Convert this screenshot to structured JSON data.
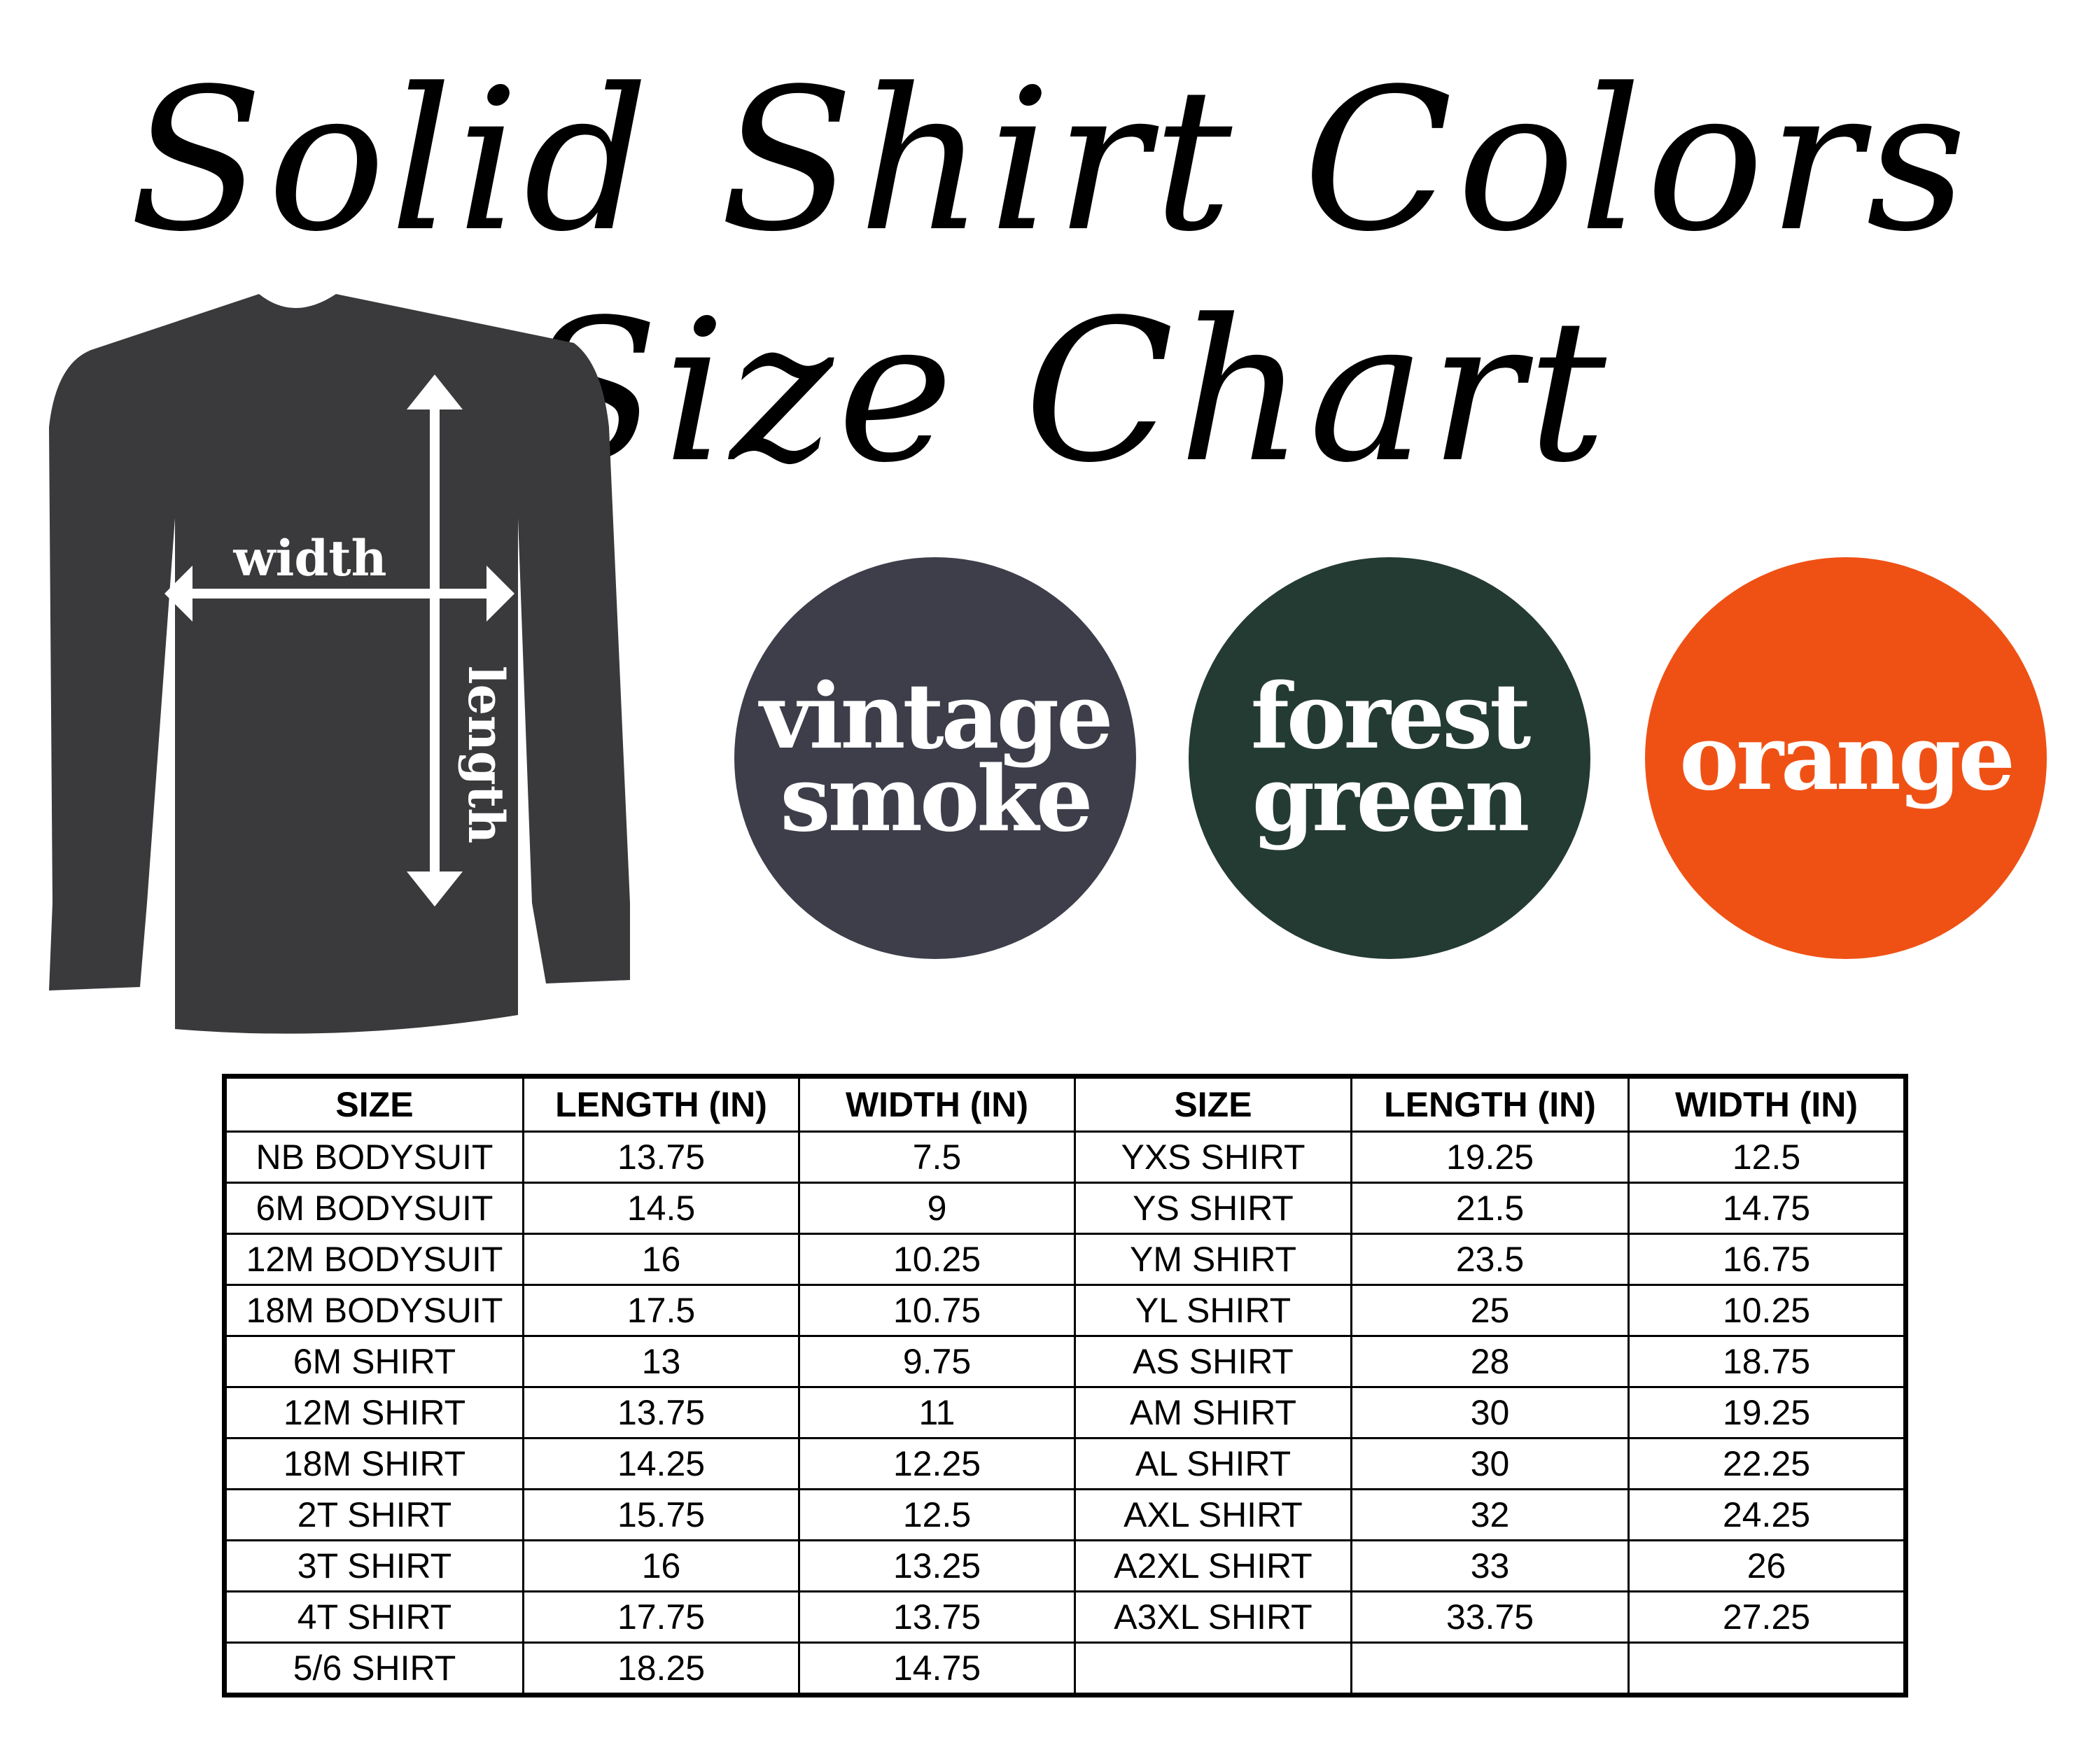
{
  "title": {
    "line1": "Solid Shirt Colors",
    "line2": "& Size Chart"
  },
  "diagram": {
    "width_label": "width",
    "length_label": "length",
    "shirt_color": "#3a3a3c"
  },
  "colors": [
    {
      "line1": "vintage",
      "line2": "smoke",
      "hex": "#3d3e4a"
    },
    {
      "line1": "forest",
      "line2": "green",
      "hex": "#243b33"
    },
    {
      "line1": "orange",
      "line2": "",
      "hex": "#ef5115"
    }
  ],
  "table": {
    "headers": [
      "SIZE",
      "LENGTH (IN)",
      "WIDTH (IN)",
      "SIZE",
      "LENGTH (IN)",
      "WIDTH (IN)"
    ],
    "rows": [
      [
        "NB BODYSUIT",
        "13.75",
        "7.5",
        "YXS SHIRT",
        "19.25",
        "12.5"
      ],
      [
        "6M BODYSUIT",
        "14.5",
        "9",
        "YS SHIRT",
        "21.5",
        "14.75"
      ],
      [
        "12M BODYSUIT",
        "16",
        "10.25",
        "YM SHIRT",
        "23.5",
        "16.75"
      ],
      [
        "18M BODYSUIT",
        "17.5",
        "10.75",
        "YL SHIRT",
        "25",
        "10.25"
      ],
      [
        "6M SHIRT",
        "13",
        "9.75",
        "AS SHIRT",
        "28",
        "18.75"
      ],
      [
        "12M SHIRT",
        "13.75",
        "11",
        "AM SHIRT",
        "30",
        "19.25"
      ],
      [
        "18M SHIRT",
        "14.25",
        "12.25",
        "AL SHIRT",
        "30",
        "22.25"
      ],
      [
        "2T SHIRT",
        "15.75",
        "12.5",
        "AXL SHIRT",
        "32",
        "24.25"
      ],
      [
        "3T SHIRT",
        "16",
        "13.25",
        "A2XL SHIRT",
        "33",
        "26"
      ],
      [
        "4T SHIRT",
        "17.75",
        "13.75",
        "A3XL SHIRT",
        "33.75",
        "27.25"
      ],
      [
        "5/6 SHIRT",
        "18.25",
        "14.75",
        "",
        "",
        ""
      ]
    ]
  }
}
